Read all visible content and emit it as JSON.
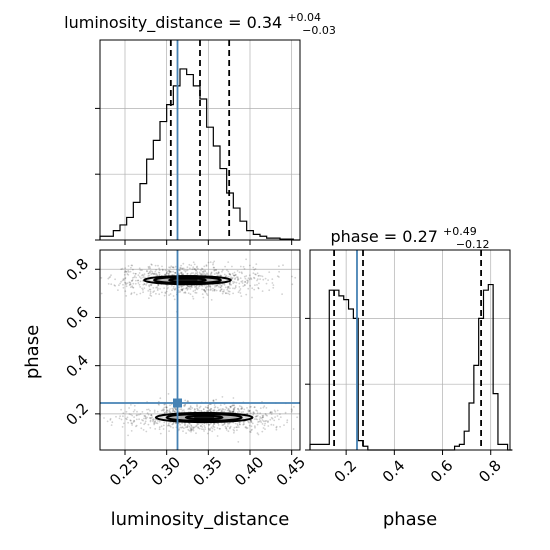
{
  "colors": {
    "truth": "#4682b4",
    "hist": "#000000",
    "grid": "#b0b0b0"
  },
  "chart_data": [
    {
      "panel": "luminosity_distance-hist",
      "type": "histogram",
      "title_main": "luminosity_distance = 0.34",
      "title_sup": "+0.04",
      "title_sub": "−0.03",
      "xlim": [
        0.22,
        0.46
      ],
      "ylim": [
        0,
        1
      ],
      "xticks": [
        0.25,
        0.3,
        0.35,
        0.4,
        0.45
      ],
      "yticks": [
        0.0,
        0.35,
        0.7
      ],
      "bin_start": 0.22,
      "bin_width": 0.008,
      "counts": [
        0.02,
        0.02,
        0.05,
        0.08,
        0.12,
        0.2,
        0.3,
        0.43,
        0.53,
        0.63,
        0.72,
        0.82,
        0.91,
        0.88,
        0.82,
        0.75,
        0.6,
        0.5,
        0.38,
        0.25,
        0.17,
        0.1,
        0.05,
        0.03,
        0.02,
        0.01,
        0.01,
        0.005,
        0.005,
        0.0
      ],
      "quantiles": [
        0.305,
        0.34,
        0.375
      ],
      "truth": 0.313
    },
    {
      "panel": "phase-vs-luminosity_distance",
      "type": "scatter",
      "xlim": [
        0.22,
        0.46
      ],
      "ylim": [
        0.05,
        0.88
      ],
      "xticks": [
        0.25,
        0.3,
        0.35,
        0.4,
        0.45
      ],
      "xticklabels": [
        "0.25",
        "0.30",
        "0.35",
        "0.40",
        "0.45"
      ],
      "yticks": [
        0.2,
        0.4,
        0.6,
        0.8
      ],
      "yticklabels": [
        "0.2",
        "0.4",
        "0.6",
        "0.8"
      ],
      "xlabel": "luminosity_distance",
      "ylabel": "phase",
      "modes": [
        {
          "center": [
            0.325,
            0.755
          ],
          "width": [
            0.045,
            0.03
          ],
          "rx": [
            0.052,
            0.04,
            0.022
          ],
          "ry": [
            0.052,
            0.04,
            0.022
          ]
        },
        {
          "center": [
            0.345,
            0.185
          ],
          "width": [
            0.045,
            0.03
          ],
          "rx": [
            0.058,
            0.045,
            0.022
          ],
          "ry": [
            0.06,
            0.045,
            0.022
          ]
        }
      ],
      "truth": [
        0.313,
        0.245
      ]
    },
    {
      "panel": "phase-hist",
      "type": "histogram",
      "title_main": "phase = 0.27",
      "title_sup": "+0.49",
      "title_sub": "−0.12",
      "xlim": [
        0.05,
        0.88
      ],
      "ylim": [
        0,
        1
      ],
      "xticks": [
        0.2,
        0.4,
        0.6,
        0.8
      ],
      "xticklabels": [
        "0.2",
        "0.4",
        "0.6",
        "0.8"
      ],
      "xlabel": "phase",
      "yticks": [
        0.0,
        0.35,
        0.7
      ],
      "bin_start": 0.05,
      "bin_width": 0.02,
      "counts": [
        0.03,
        0.03,
        0.03,
        0.03,
        0.85,
        0.85,
        0.82,
        0.8,
        0.75,
        0.7,
        0.05,
        0.02,
        0.0,
        0.0,
        0.0,
        0.0,
        0.0,
        0.0,
        0.0,
        0.0,
        0.0,
        0.0,
        0.0,
        0.0,
        0.0,
        0.0,
        0.0,
        0.0,
        0.0,
        0.0,
        0.02,
        0.03,
        0.1,
        0.25,
        0.45,
        0.7,
        0.85,
        0.88,
        0.3,
        0.03,
        0.03,
        0.0
      ],
      "quantiles": [
        0.15,
        0.27,
        0.76
      ],
      "truth": 0.245
    }
  ]
}
